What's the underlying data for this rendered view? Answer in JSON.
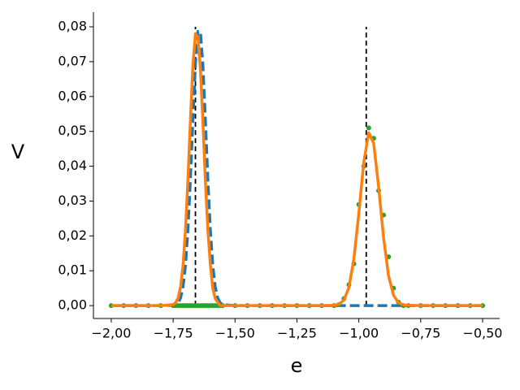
{
  "chart_data": {
    "type": "line",
    "xlabel": "e",
    "ylabel": "V",
    "xlim": [
      -2.072,
      -0.431
    ],
    "ylim": [
      -0.0037,
      0.0842
    ],
    "xticks": [
      {
        "value": -2.0,
        "label": "−2,00"
      },
      {
        "value": -1.75,
        "label": "−1,75"
      },
      {
        "value": -1.5,
        "label": "−1,50"
      },
      {
        "value": -1.25,
        "label": "−1,25"
      },
      {
        "value": -1.0,
        "label": "−1,00"
      },
      {
        "value": -0.75,
        "label": "−0,75"
      },
      {
        "value": -0.5,
        "label": "−0,50"
      }
    ],
    "yticks": [
      {
        "value": 0,
        "label": "0,00"
      },
      {
        "value": 0.01,
        "label": "0,01"
      },
      {
        "value": 0.02,
        "label": "0,02"
      },
      {
        "value": 0.03,
        "label": "0,03"
      },
      {
        "value": 0.04,
        "label": "0,04"
      },
      {
        "value": 0.05,
        "label": "0,05"
      },
      {
        "value": 0.06,
        "label": "0,06"
      },
      {
        "value": 0.07,
        "label": "0,07"
      },
      {
        "value": 0.08,
        "label": "0,08"
      }
    ],
    "x": [
      -2.0,
      -1.95,
      -1.9,
      -1.85,
      -1.8,
      -1.75,
      -1.74,
      -1.73,
      -1.72,
      -1.71,
      -1.7,
      -1.69,
      -1.68,
      -1.67,
      -1.66,
      -1.65,
      -1.64,
      -1.63,
      -1.62,
      -1.61,
      -1.6,
      -1.59,
      -1.58,
      -1.57,
      -1.56,
      -1.55,
      -1.5,
      -1.45,
      -1.4,
      -1.35,
      -1.3,
      -1.25,
      -1.2,
      -1.15,
      -1.1,
      -1.08,
      -1.06,
      -1.04,
      -1.02,
      -1.0,
      -0.98,
      -0.96,
      -0.94,
      -0.92,
      -0.9,
      -0.88,
      -0.86,
      -0.84,
      -0.82,
      -0.8,
      -0.75,
      -0.7,
      -0.65,
      -0.6,
      -0.55,
      -0.5
    ],
    "series": [
      {
        "kind": "line",
        "dashed": true,
        "color": "#1f77b4",
        "values": [
          0,
          0,
          0,
          0,
          0,
          0.0001,
          0.0003,
          0.0008,
          0.0022,
          0.0054,
          0.0116,
          0.022,
          0.0366,
          0.0537,
          0.0693,
          0.0787,
          0.0787,
          0.0693,
          0.0537,
          0.0366,
          0.022,
          0.0116,
          0.0054,
          0.0022,
          0.0008,
          0.0003,
          0,
          0,
          0,
          0,
          0,
          0,
          0,
          0,
          0,
          0,
          0,
          0,
          0,
          0,
          0,
          0,
          0,
          0,
          0,
          0,
          0,
          0,
          0,
          0,
          0,
          0,
          0,
          0,
          0,
          0
        ]
      },
      {
        "kind": "scatter",
        "dashed": false,
        "color": "#2ca02c",
        "values": [
          0,
          0,
          0,
          0,
          0,
          0,
          0,
          0,
          0,
          0,
          0,
          0,
          0,
          0,
          0,
          0,
          0,
          0,
          0,
          0,
          0,
          0,
          0,
          0,
          0,
          0,
          0,
          0,
          0,
          0,
          0,
          0,
          0,
          0,
          0,
          0.0003,
          0.002,
          0.006,
          0.012,
          0.029,
          0.04,
          0.051,
          0.048,
          0.033,
          0.026,
          0.014,
          0.005,
          0.001,
          0,
          0,
          0,
          0,
          0,
          0,
          0,
          0
        ]
      },
      {
        "kind": "line",
        "dashed": false,
        "color": "#ff7f0e",
        "values": [
          0,
          0,
          0,
          0,
          0,
          0.0003,
          0.0008,
          0.0022,
          0.0054,
          0.0116,
          0.022,
          0.0366,
          0.0537,
          0.0693,
          0.078,
          0.077,
          0.068,
          0.053,
          0.036,
          0.022,
          0.012,
          0.005,
          0.002,
          0.001,
          0,
          0,
          0,
          0,
          0,
          0,
          0,
          0,
          0,
          0,
          0.0001,
          0.0004,
          0.0016,
          0.0052,
          0.0134,
          0.0265,
          0.0411,
          0.0496,
          0.0466,
          0.0341,
          0.0194,
          0.0086,
          0.003,
          0.0008,
          0.0002,
          0.0001,
          0,
          0,
          0,
          0,
          0,
          0
        ]
      }
    ],
    "vlines": [
      {
        "x": -1.66,
        "ymin": 0,
        "ymax": 0.08
      },
      {
        "x": -0.97,
        "ymin": 0,
        "ymax": 0.08
      }
    ]
  }
}
